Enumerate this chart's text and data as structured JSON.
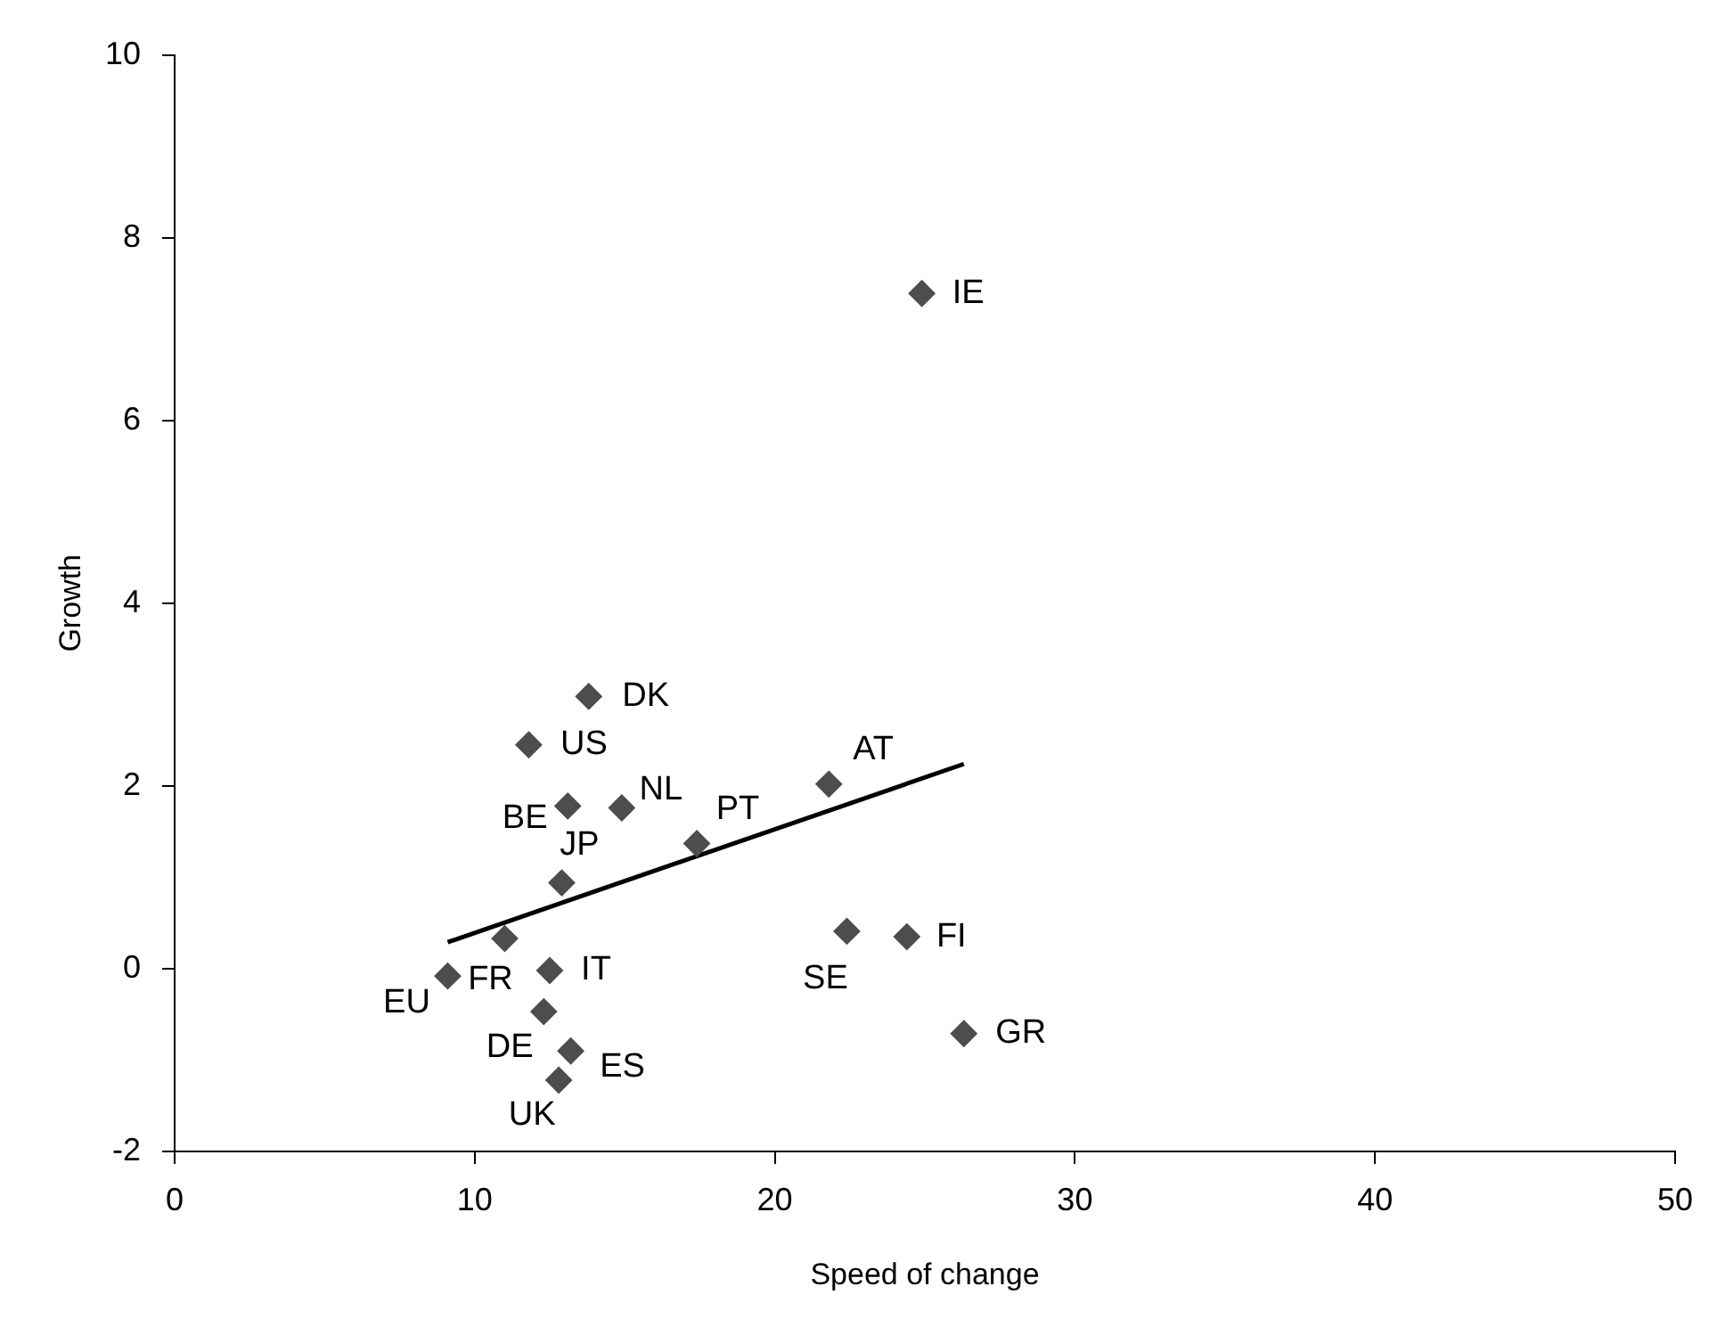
{
  "chart_data": {
    "type": "scatter",
    "xlabel": "Speed of change",
    "ylabel": "Growth",
    "xlim": [
      0,
      50
    ],
    "xticks": [
      0,
      10,
      20,
      30,
      40,
      50
    ],
    "ylim": [
      -2,
      10
    ],
    "yticks": [
      -2,
      0,
      2,
      4,
      6,
      8,
      10
    ],
    "grid": false,
    "legend": false,
    "marker": "diamond",
    "series": [
      {
        "type": "scatter",
        "color": "#4d4d4d",
        "x": [
          24.9,
          13.8,
          11.8,
          13.1,
          14.9,
          21.8,
          17.4,
          12.9,
          11.0,
          12.5,
          9.1,
          12.3,
          13.2,
          12.8,
          22.4,
          24.4,
          26.3
        ],
        "values": [
          7.39,
          2.98,
          2.45,
          1.78,
          1.76,
          2.02,
          1.37,
          0.94,
          0.33,
          -0.02,
          -0.08,
          -0.47,
          -0.9,
          -1.22,
          0.41,
          0.35,
          -0.71
        ]
      },
      {
        "type": "line",
        "color": "#000000",
        "x": [
          9.1,
          26.3
        ],
        "values": [
          0.29,
          2.24
        ],
        "marker": "none"
      }
    ],
    "annotations": [
      {
        "text": "IE",
        "x": 24.9,
        "y": 7.39
      },
      {
        "text": "DK",
        "x": 13.8,
        "y": 2.98
      },
      {
        "text": "US",
        "x": 11.8,
        "y": 2.45
      },
      {
        "text": "BE",
        "x": 13.1,
        "y": 1.78
      },
      {
        "text": "NL",
        "x": 14.9,
        "y": 1.76
      },
      {
        "text": "AT",
        "x": 21.8,
        "y": 2.02
      },
      {
        "text": "PT",
        "x": 17.4,
        "y": 1.37
      },
      {
        "text": "JP",
        "x": 12.9,
        "y": 0.94
      },
      {
        "text": "FR",
        "x": 11.0,
        "y": 0.33
      },
      {
        "text": "IT",
        "x": 12.5,
        "y": -0.02
      },
      {
        "text": "EU",
        "x": 9.1,
        "y": -0.08
      },
      {
        "text": "DE",
        "x": 12.3,
        "y": -0.47
      },
      {
        "text": "ES",
        "x": 13.2,
        "y": -0.9
      },
      {
        "text": "UK",
        "x": 12.8,
        "y": -1.22
      },
      {
        "text": "SE",
        "x": 22.4,
        "y": 0.41
      },
      {
        "text": "FI",
        "x": 24.4,
        "y": 0.35
      },
      {
        "text": "GR",
        "x": 26.3,
        "y": -0.71
      }
    ]
  }
}
